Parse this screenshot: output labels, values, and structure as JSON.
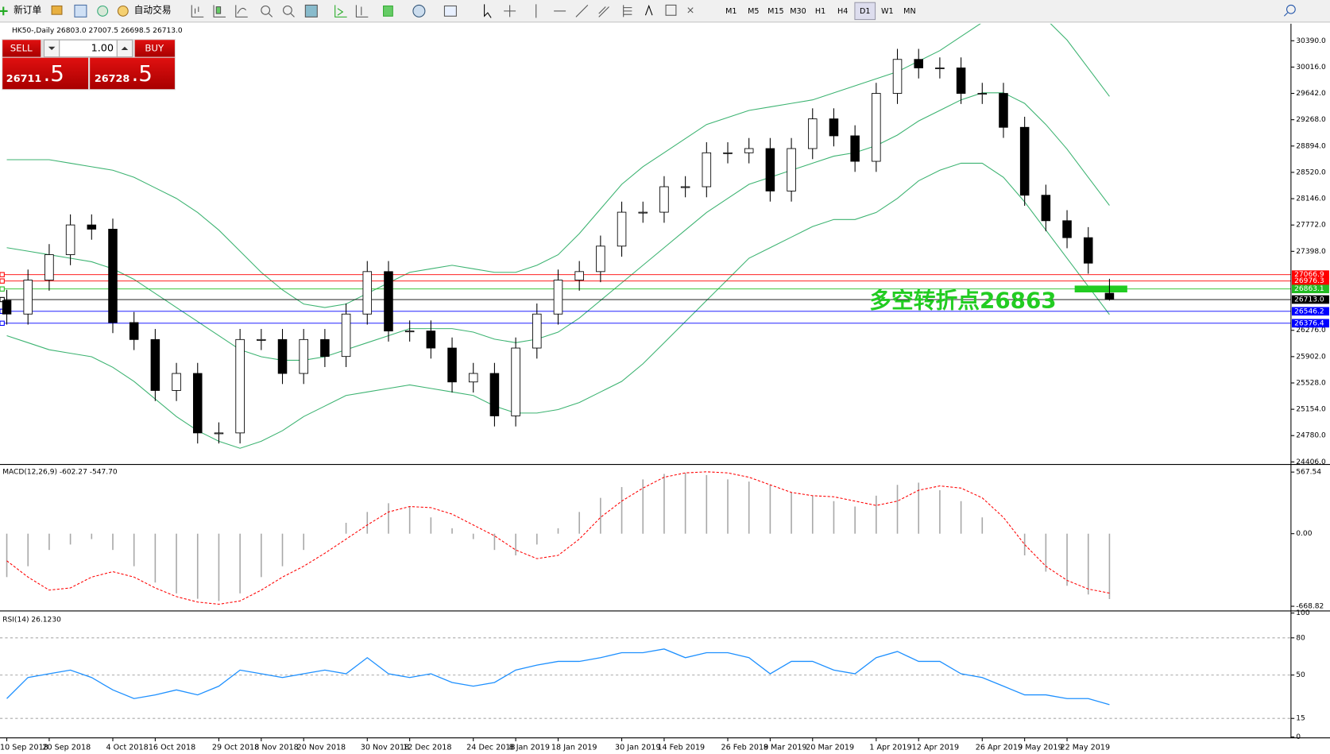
{
  "toolbar": {
    "new_order": "新订单",
    "auto_trading": "自动交易",
    "periods": [
      "M1",
      "M5",
      "M15",
      "M30",
      "H1",
      "H4",
      "D1",
      "W1",
      "MN"
    ],
    "active_period": "D1"
  },
  "trade_panel": {
    "sell": "SELL",
    "buy": "BUY",
    "lot": "1.00",
    "sell_main": "26711",
    "sell_frac": ".5",
    "buy_main": "26728",
    "buy_frac": ".5"
  },
  "chart_data": [
    {
      "type": "candlestick",
      "title": "HK50-,Daily  26803.0 27007.5 26698.5 26713.0",
      "categories": [
        "10 Sep 2018",
        null,
        "20 Sep 2018",
        null,
        null,
        "4 Oct 2018",
        null,
        "16 Oct 2018",
        null,
        null,
        "29 Oct 2018",
        null,
        "8 Nov 2018",
        null,
        "20 Nov 2018",
        null,
        null,
        "30 Nov 2018",
        null,
        "12 Dec 2018",
        null,
        null,
        "24 Dec 2018",
        null,
        "8 Jan 2019",
        null,
        "18 Jan 2019",
        null,
        null,
        "30 Jan 2019",
        null,
        "14 Feb 2019",
        null,
        null,
        "26 Feb 2019",
        null,
        "8 Mar 2019",
        null,
        "20 Mar 2019",
        null,
        null,
        "1 Apr 2019",
        null,
        "12 Apr 2019",
        null,
        null,
        "26 Apr 2019",
        null,
        "9 May 2019",
        null,
        "22 May 2019",
        null,
        null
      ],
      "open": [
        26700,
        26507,
        26989,
        27351,
        27773,
        27713,
        26386,
        26145,
        25421,
        25663,
        24818,
        24818,
        26145,
        26145,
        25663,
        26145,
        25904,
        26507,
        27110,
        26266,
        26266,
        26024,
        25542,
        25663,
        25060,
        26024,
        26507,
        26989,
        27110,
        27472,
        27954,
        27954,
        28316,
        28316,
        28798,
        28798,
        28858,
        28255,
        28858,
        29280,
        29039,
        28677,
        29642,
        30125,
        30004,
        30004,
        29642,
        29642,
        29160,
        28195,
        27833,
        27592,
        26803
      ],
      "high": [
        26850,
        27139,
        27501,
        27923,
        27923,
        27863,
        26536,
        26295,
        25813,
        25813,
        24968,
        26295,
        26295,
        26295,
        26295,
        26295,
        26657,
        27260,
        27260,
        26416,
        26416,
        26174,
        25813,
        25813,
        26174,
        26657,
        27139,
        27260,
        27622,
        28104,
        28104,
        28466,
        28466,
        28948,
        28948,
        29008,
        29008,
        29008,
        29430,
        29430,
        29189,
        29792,
        30275,
        30275,
        30154,
        30154,
        29792,
        29792,
        29310,
        28345,
        27983,
        27742,
        27007.5
      ],
      "low": [
        26357,
        26357,
        26839,
        27201,
        27563,
        26236,
        25995,
        25271,
        25271,
        24668,
        24668,
        24668,
        25995,
        25513,
        25513,
        25754,
        25754,
        26357,
        26116,
        26116,
        25874,
        25392,
        25392,
        24910,
        24910,
        25874,
        26357,
        26839,
        26960,
        27322,
        27804,
        27804,
        28166,
        28166,
        28648,
        28648,
        28105,
        28105,
        28708,
        28889,
        28527,
        28527,
        29492,
        29854,
        29854,
        29492,
        29492,
        29010,
        28045,
        27683,
        27442,
        27080,
        26698.5
      ],
      "close": [
        26507,
        26989,
        27351,
        27773,
        27713,
        26386,
        26145,
        25421,
        25663,
        24818,
        24818,
        26145,
        26145,
        25663,
        26145,
        25904,
        26507,
        27110,
        26266,
        26266,
        26024,
        25542,
        25663,
        25060,
        26024,
        26507,
        26989,
        27110,
        27472,
        27954,
        27954,
        28316,
        28316,
        28798,
        28798,
        28858,
        28255,
        28858,
        29280,
        29039,
        28677,
        29642,
        30125,
        30004,
        30004,
        29642,
        29642,
        29160,
        28195,
        27833,
        27592,
        27230,
        26713
      ],
      "up_color": "#ffffff",
      "down_color": "#000000",
      "bands": {
        "color": "#3cb371",
        "upper": [
          28700,
          28700,
          28700,
          28650,
          28600,
          28550,
          28450,
          28300,
          28150,
          27950,
          27700,
          27400,
          27100,
          26850,
          26650,
          26600,
          26650,
          26800,
          26950,
          27100,
          27150,
          27200,
          27150,
          27100,
          27100,
          27200,
          27350,
          27650,
          28000,
          28350,
          28600,
          28800,
          29000,
          29200,
          29300,
          29400,
          29450,
          29500,
          29550,
          29650,
          29750,
          29850,
          29950,
          30100,
          30250,
          30450,
          30650,
          30850,
          30900,
          30700,
          30400,
          30000,
          29600
        ],
        "middle": [
          27450,
          27400,
          27350,
          27300,
          27250,
          27150,
          27000,
          26800,
          26600,
          26400,
          26200,
          26000,
          25900,
          25850,
          25850,
          25900,
          26000,
          26100,
          26200,
          26300,
          26300,
          26300,
          26250,
          26150,
          26100,
          26150,
          26250,
          26450,
          26700,
          26950,
          27200,
          27450,
          27700,
          27950,
          28150,
          28350,
          28450,
          28550,
          28650,
          28750,
          28800,
          28900,
          29050,
          29250,
          29400,
          29550,
          29650,
          29650,
          29500,
          29200,
          28850,
          28450,
          28050
        ],
        "lower": [
          26200,
          26100,
          26000,
          25950,
          25900,
          25750,
          25550,
          25300,
          25050,
          24850,
          24700,
          24600,
          24700,
          24850,
          25050,
          25200,
          25350,
          25400,
          25450,
          25500,
          25450,
          25400,
          25350,
          25200,
          25100,
          25100,
          25150,
          25250,
          25400,
          25550,
          25800,
          26100,
          26400,
          26700,
          27000,
          27300,
          27450,
          27600,
          27750,
          27850,
          27850,
          27950,
          28150,
          28400,
          28550,
          28650,
          28650,
          28450,
          28100,
          27700,
          27300,
          26900,
          26500
        ]
      },
      "ylim": [
        24382,
        30607
      ],
      "yticks": [
        {
          "value": 24406,
          "label": "24406.0"
        },
        {
          "value": 24780,
          "label": "24780.0"
        },
        {
          "value": 25154,
          "label": "25154.0"
        },
        {
          "value": 25528,
          "label": "25528.0"
        },
        {
          "value": 25902,
          "label": "25902.0"
        },
        {
          "value": 26276,
          "label": "26276.0"
        },
        {
          "value": 27398,
          "label": "27398.0"
        },
        {
          "value": 27772,
          "label": "27772.0"
        },
        {
          "value": 28146,
          "label": "28146.0"
        },
        {
          "value": 28520,
          "label": "28520.0"
        },
        {
          "value": 28894,
          "label": "28894.0"
        },
        {
          "value": 29268,
          "label": "29268.0"
        },
        {
          "value": 29642,
          "label": "29642.0"
        },
        {
          "value": 30016,
          "label": "30016.0"
        },
        {
          "value": 30390,
          "label": "30390.0"
        }
      ],
      "price_lines": [
        {
          "value": 27066.9,
          "color": "#ff0000"
        },
        {
          "value": 26976.3,
          "color": "#ff0000"
        },
        {
          "value": 26863.1,
          "color": "#22bb22"
        },
        {
          "value": 26713,
          "label": "26713.0",
          "color": "#000000"
        },
        {
          "value": 26546.2,
          "color": "#0000ff"
        },
        {
          "value": 26376.4,
          "color": "#0000ff"
        }
      ],
      "annotation": {
        "text": "多空转折点26863",
        "color": "#22cc22"
      }
    },
    {
      "type": "macd",
      "title": "MACD(12,26,9) -602.27 -547.70",
      "series": [
        {
          "color": "#a8a8a8",
          "values": [
            -400,
            -300,
            -150,
            -100,
            -50,
            -150,
            -300,
            -450,
            -550,
            -600,
            -620,
            -550,
            -400,
            -300,
            -150,
            0,
            100,
            200,
            280,
            250,
            150,
            50,
            -50,
            -150,
            -200,
            -100,
            50,
            200,
            330,
            430,
            500,
            550,
            560,
            540,
            500,
            480,
            450,
            380,
            350,
            300,
            250,
            350,
            450,
            470,
            400,
            300,
            150,
            0,
            -200,
            -350,
            -480,
            -560,
            -602.27
          ]
        },
        {
          "color": "#ff0000",
          "values": [
            -250,
            -400,
            -520,
            -500,
            -400,
            -350,
            -400,
            -500,
            -580,
            -630,
            -650,
            -620,
            -520,
            -400,
            -300,
            -180,
            -50,
            80,
            200,
            250,
            240,
            180,
            80,
            -20,
            -150,
            -230,
            -200,
            -50,
            150,
            300,
            420,
            520,
            560,
            570,
            560,
            520,
            450,
            380,
            350,
            340,
            300,
            260,
            300,
            400,
            440,
            420,
            330,
            150,
            -100,
            -300,
            -430,
            -510,
            -547.7
          ]
        }
      ],
      "ylim": [
        -700,
        622
      ],
      "yticks": [
        567.54,
        {
          "value": 0,
          "label": "0.00"
        },
        -668.82
      ]
    },
    {
      "type": "rsi",
      "title": "RSI(14) 26.1230",
      "color": "#1e90ff",
      "grid": true,
      "values": [
        31,
        48,
        51,
        54,
        48,
        38,
        31,
        34,
        38,
        34,
        41,
        54,
        51,
        48,
        51,
        54,
        51,
        64,
        51,
        48,
        51,
        44,
        41,
        44,
        54,
        58,
        61,
        61,
        64,
        68,
        68,
        71,
        64,
        68,
        68,
        64,
        51,
        61,
        61,
        54,
        51,
        64,
        69,
        61,
        61,
        51,
        48,
        41,
        34,
        34,
        31,
        31,
        26.123
      ],
      "ylim": [
        0,
        100
      ],
      "yticks": [
        100,
        80,
        50,
        15,
        0
      ]
    }
  ]
}
